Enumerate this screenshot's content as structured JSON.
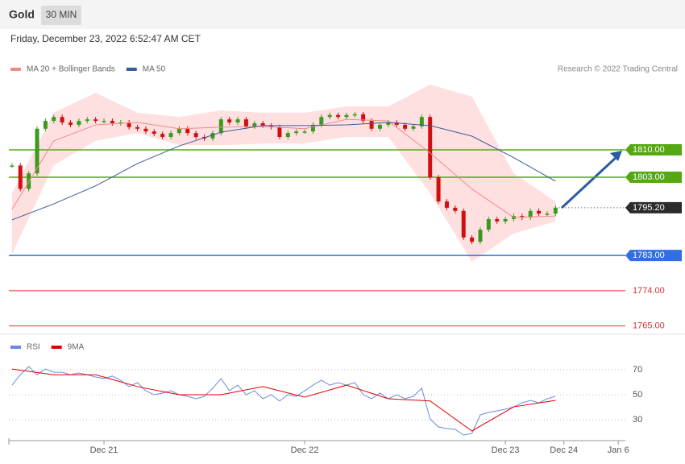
{
  "header": {
    "title": "Gold",
    "interval": "30 MIN",
    "timestamp": "Friday, December 23, 2022 6:52:47 AM CET"
  },
  "chart_data": [
    {
      "type": "candlestick",
      "credit": "Research © 2022 Trading Central",
      "up_color": "#3a9a1e",
      "down_color": "#d01010",
      "x": [
        -22,
        -20,
        -18,
        -16,
        -14,
        -12,
        -10,
        -8,
        -6,
        -4,
        -2,
        0,
        2,
        4,
        6,
        8,
        10,
        12,
        14,
        16,
        18,
        20,
        22,
        24,
        26,
        28,
        30,
        32,
        34,
        36,
        38,
        40,
        42,
        44,
        46,
        48,
        50,
        52,
        54,
        56,
        58,
        60,
        62,
        64,
        66,
        68,
        70,
        72,
        74,
        76,
        78,
        80,
        82,
        84,
        86,
        88,
        90,
        92,
        94,
        96,
        98,
        100,
        102,
        104,
        106,
        108
      ],
      "close": [
        1806,
        1800,
        1804,
        1815.4,
        1817.4,
        1818.4,
        1817,
        1816.4,
        1817.4,
        1817.8,
        1817.4,
        1817.4,
        1816.8,
        1817,
        1815.8,
        1815.4,
        1814.7,
        1814.1,
        1813.3,
        1814.3,
        1815.4,
        1814.3,
        1813.3,
        1812.9,
        1814.3,
        1817.8,
        1817,
        1817.8,
        1816,
        1816.8,
        1816.2,
        1815.8,
        1813.3,
        1814.3,
        1814.7,
        1814.7,
        1816.4,
        1818.4,
        1818.9,
        1818.4,
        1818.9,
        1819.1,
        1817.4,
        1815.4,
        1816.4,
        1817,
        1816.4,
        1815.4,
        1816,
        1818.4,
        1803,
        1796.8,
        1795.2,
        1794.4,
        1787.6,
        1786.5,
        1789.6,
        1792.3,
        1791.7,
        1792.3,
        1793.1,
        1792.7,
        1794.4,
        1793.7,
        1793.7,
        1795.2
      ],
      "overlays": [
        {
          "name": "MA 20 + Bollinger Bands",
          "color": "#f08a8a",
          "band_color": "#ffd6d6",
          "x": [
            -22,
            -12,
            -2,
            8,
            18,
            28,
            38,
            48,
            58,
            68,
            78,
            88,
            98,
            108
          ],
          "values": [
            1794.8,
            1812.3,
            1816.4,
            1817,
            1815.4,
            1815.8,
            1816,
            1815.4,
            1817.8,
            1817.4,
            1809.2,
            1800,
            1792.7,
            1793.1
          ],
          "upper": [
            1798.9,
            1819.5,
            1824.6,
            1819.5,
            1818.4,
            1820.1,
            1819.5,
            1819.5,
            1821.1,
            1821.1,
            1826.7,
            1823.6,
            1804,
            1796.8
          ],
          "lower": [
            1783.4,
            1806.1,
            1812.3,
            1814.3,
            1811.2,
            1811.2,
            1811.6,
            1811.6,
            1813.3,
            1813.3,
            1798.9,
            1781.4,
            1788.6,
            1791.7
          ]
        },
        {
          "name": "MA 50",
          "color": "#3a5a9c",
          "x": [
            -22,
            -12,
            -2,
            8,
            18,
            28,
            38,
            48,
            58,
            68,
            78,
            88,
            98,
            108
          ],
          "values": [
            1792.1,
            1796.2,
            1800.8,
            1806.5,
            1811,
            1814.5,
            1816.2,
            1816.2,
            1816.4,
            1817,
            1816.2,
            1813.5,
            1808,
            1802
          ]
        }
      ],
      "levels": [
        {
          "value": 1810,
          "label": "1810.00",
          "color": "#55a812",
          "boxed": true
        },
        {
          "value": 1803,
          "label": "1803.00",
          "color": "#55a812",
          "boxed": true
        },
        {
          "value": 1795.2,
          "label": "1795.20",
          "color": "#2b2b2b",
          "boxed": true,
          "dashed": true
        },
        {
          "value": 1783,
          "label": "1783.00",
          "color": "#2f6fe0",
          "boxed": true
        },
        {
          "value": 1774,
          "label": "1774.00",
          "color": "#e03030",
          "boxed": false
        },
        {
          "value": 1765,
          "label": "1765.00",
          "color": "#e03030",
          "boxed": false
        }
      ],
      "xlim": [
        -22.75,
        124.7
      ],
      "ylim": [
        1763,
        1828
      ]
    },
    {
      "type": "line",
      "series": [
        {
          "name": "RSI",
          "color": "#6a8ae0",
          "x": [
            -22,
            -20,
            -18,
            -16,
            -14,
            -12,
            -10,
            -8,
            -6,
            -4,
            -2,
            0,
            2,
            4,
            6,
            8,
            10,
            12,
            14,
            16,
            18,
            20,
            22,
            24,
            26,
            28,
            30,
            32,
            34,
            36,
            38,
            40,
            42,
            44,
            46,
            48,
            50,
            52,
            54,
            56,
            58,
            60,
            62,
            64,
            66,
            68,
            70,
            72,
            74,
            76,
            78,
            80,
            82,
            84,
            86,
            88,
            90,
            92,
            94,
            96,
            98,
            100,
            102,
            104,
            106,
            108
          ],
          "values": [
            57.7,
            66,
            72.6,
            66,
            70.6,
            68,
            68,
            66,
            67.4,
            66,
            64.2,
            62.9,
            65,
            61.6,
            56.5,
            59.7,
            53.2,
            50,
            51.3,
            53.2,
            50,
            48.7,
            46.8,
            48.7,
            55.2,
            62.9,
            53.2,
            57.7,
            50,
            53.2,
            46.8,
            50,
            45,
            50,
            48.7,
            53.2,
            57.7,
            61.6,
            57.7,
            59.7,
            57.7,
            59.7,
            50,
            46.8,
            51.3,
            46.8,
            50,
            46.8,
            48.7,
            55.2,
            30.6,
            24.2,
            22.9,
            22.3,
            17.7,
            19,
            33.9,
            35.8,
            37.1,
            38.4,
            40.3,
            43.5,
            45.5,
            43.5,
            46.8,
            48.7
          ]
        },
        {
          "name": "9MA",
          "color": "#e00000",
          "x": [
            -22,
            -12,
            -2,
            8,
            18,
            28,
            38,
            48,
            58,
            68,
            78,
            88,
            98,
            108
          ],
          "values": [
            70.6,
            66,
            66,
            56.5,
            50,
            50,
            56.5,
            48.1,
            57.7,
            46.8,
            45,
            21,
            40.3,
            45.5
          ]
        }
      ],
      "xlim": [
        -22.75,
        124.7
      ],
      "xticks": [
        {
          "value": 0,
          "label": "Dec 21"
        },
        {
          "value": 48,
          "label": "Dec 22"
        },
        {
          "value": 96,
          "label": "Dec 23"
        },
        {
          "value": 110,
          "label": "Dec 24"
        },
        {
          "value": 123,
          "label": "Jan 6"
        }
      ],
      "ylim": [
        15,
        82
      ],
      "yticks": [
        30,
        50,
        70
      ],
      "grid": true
    }
  ]
}
